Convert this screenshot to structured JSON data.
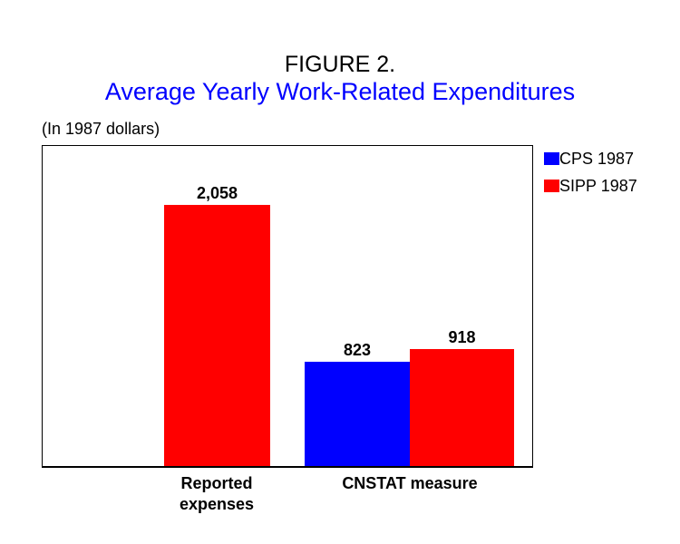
{
  "page": {
    "title": "FIGURE 2.",
    "subtitle": "Average Yearly Work-Related Expenditures",
    "units_note": "(In 1987 dollars)"
  },
  "legend": {
    "items": [
      {
        "label": "CPS 1987",
        "color": "#0000ff"
      },
      {
        "label": "SIPP 1987",
        "color": "#ff0000"
      }
    ]
  },
  "chart_data": {
    "type": "bar",
    "title": "FIGURE 2.",
    "subtitle": "Average Yearly Work-Related Expenditures",
    "units": "(In 1987 dollars)",
    "categories": [
      "Reported expenses",
      "CNSTAT measure"
    ],
    "series": [
      {
        "name": "CPS 1987",
        "color": "#0000ff",
        "values": [
          null,
          823
        ]
      },
      {
        "name": "SIPP 1987",
        "color": "#ff0000",
        "values": [
          2058,
          918
        ]
      }
    ],
    "bars": [
      {
        "category": "Reported expenses",
        "series": "SIPP 1987",
        "value": 2058,
        "label": "2,058",
        "color": "#ff0000"
      },
      {
        "category": "CNSTAT measure",
        "series": "CPS 1987",
        "value": 823,
        "label": "823",
        "color": "#0000ff"
      },
      {
        "category": "CNSTAT measure",
        "series": "SIPP 1987",
        "value": 918,
        "label": "918",
        "color": "#ff0000"
      }
    ],
    "ylim": [
      0,
      2520
    ],
    "xlabel": "",
    "ylabel": "",
    "grid": false,
    "y_axis_shown": false,
    "value_labels_shown": true,
    "legend_position": "outside-top-right",
    "colors": {
      "cps": "#0000ff",
      "sipp": "#ff0000",
      "title": "#0000ff",
      "text": "#000000",
      "background": "#ffffff"
    }
  }
}
